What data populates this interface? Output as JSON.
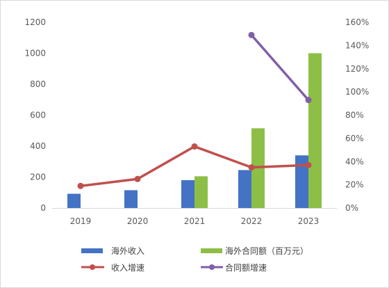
{
  "chart_data": {
    "type": "bar",
    "categories": [
      "2019",
      "2020",
      "2021",
      "2022",
      "2023"
    ],
    "series": [
      {
        "name": "海外收入",
        "kind": "bar",
        "axis": "left",
        "color": "#4472C4",
        "values": [
          92,
          115,
          180,
          245,
          340
        ]
      },
      {
        "name": "海外合同额（百万元）",
        "kind": "bar",
        "axis": "left",
        "color": "#8DBF46",
        "values": [
          null,
          null,
          205,
          515,
          1000
        ]
      },
      {
        "name": "收入增速",
        "kind": "line",
        "axis": "right",
        "color": "#C0504D",
        "values": [
          0.19,
          0.25,
          0.53,
          0.35,
          0.37
        ]
      },
      {
        "name": "合同额增速",
        "kind": "line",
        "axis": "right",
        "color": "#7F5FA9",
        "values": [
          null,
          null,
          null,
          1.49,
          0.93
        ]
      }
    ],
    "y_left": {
      "range": [
        0,
        1200
      ],
      "ticks": [
        "0",
        "200",
        "400",
        "600",
        "800",
        "1000",
        "1200"
      ]
    },
    "y_right": {
      "range": [
        0,
        1.6
      ],
      "ticks": [
        "0%",
        "20%",
        "40%",
        "60%",
        "80%",
        "100%",
        "120%",
        "140%",
        "160%"
      ]
    },
    "grid": false,
    "legend": {
      "position": "bottom",
      "items": [
        "海外收入",
        "海外合同额（百万元）",
        "收入增速",
        "合同额增速"
      ]
    }
  }
}
